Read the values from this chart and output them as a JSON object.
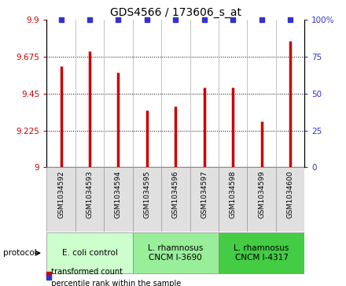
{
  "title": "GDS4566 / 173606_s_at",
  "samples": [
    "GSM1034592",
    "GSM1034593",
    "GSM1034594",
    "GSM1034595",
    "GSM1034596",
    "GSM1034597",
    "GSM1034598",
    "GSM1034599",
    "GSM1034600"
  ],
  "bar_values": [
    9.62,
    9.71,
    9.58,
    9.35,
    9.37,
    9.49,
    9.49,
    9.28,
    9.77
  ],
  "percentile_values": [
    100,
    100,
    100,
    100,
    100,
    100,
    100,
    100,
    100
  ],
  "bar_color": "#CC0000",
  "percentile_color": "#3333CC",
  "ylim_left": [
    9.0,
    9.9
  ],
  "ylim_right": [
    0,
    100
  ],
  "yticks_left": [
    9.0,
    9.225,
    9.45,
    9.675,
    9.9
  ],
  "ytick_labels_left": [
    "9",
    "9.225",
    "9.45",
    "9.675",
    "9.9"
  ],
  "yticks_right": [
    0,
    25,
    50,
    75,
    100
  ],
  "ytick_labels_right": [
    "0",
    "25",
    "50",
    "75",
    "100%"
  ],
  "groups": [
    {
      "label": "E. coli control",
      "indices": [
        0,
        1,
        2
      ],
      "color": "#ccffcc"
    },
    {
      "label": "L. rhamnosus\nCNCM I-3690",
      "indices": [
        3,
        4,
        5
      ],
      "color": "#99ee99"
    },
    {
      "label": "L. rhamnosus\nCNCM I-4317",
      "indices": [
        6,
        7,
        8
      ],
      "color": "#44cc44"
    }
  ],
  "protocol_label": "protocol",
  "legend_items": [
    {
      "color": "#CC0000",
      "label": "transformed count"
    },
    {
      "color": "#3333CC",
      "label": "percentile rank within the sample"
    }
  ],
  "bar_width": 0.08,
  "stem_linewidth": 2.5,
  "marker_size": 5
}
